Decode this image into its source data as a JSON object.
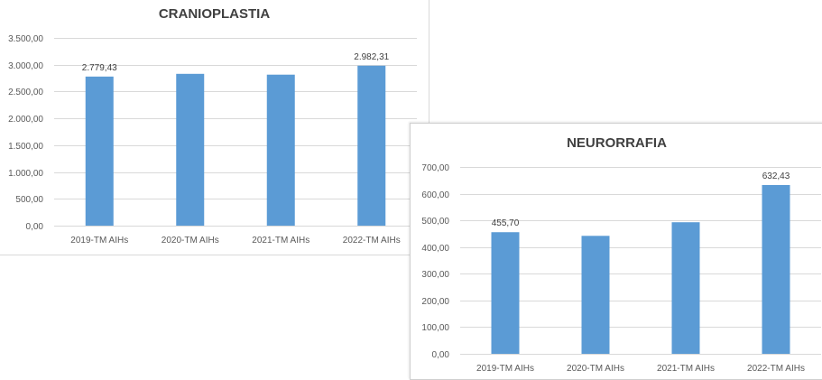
{
  "chart_data": [
    {
      "type": "bar",
      "title": "CRANIOPLASTIA",
      "categories": [
        "2019-TM AIHs",
        "2020-TM AIHs",
        "2021-TM AIHs",
        "2022-TM AIHs"
      ],
      "values": [
        2779.43,
        2830,
        2815,
        2982.31
      ],
      "data_labels": [
        "2.779,43",
        "",
        "",
        "2.982,31"
      ],
      "yticks": [
        "0,00",
        "500,00",
        "1.000,00",
        "1.500,00",
        "2.000,00",
        "2.500,00",
        "3.000,00",
        "3.500,00"
      ],
      "ylim": [
        0,
        3500
      ],
      "grid": true,
      "bar_color": "#5b9bd5"
    },
    {
      "type": "bar",
      "title": "NEURORRAFIA",
      "categories": [
        "2019-TM AIHs",
        "2020-TM AIHs",
        "2021-TM AIHs",
        "2022-TM AIHs"
      ],
      "values": [
        455.7,
        442,
        493,
        632.43
      ],
      "data_labels": [
        "455,70",
        "",
        "",
        "632,43"
      ],
      "yticks": [
        "0,00",
        "100,00",
        "200,00",
        "300,00",
        "400,00",
        "500,00",
        "600,00",
        "700,00"
      ],
      "ylim": [
        0,
        700
      ],
      "grid": true,
      "bar_color": "#5b9bd5"
    }
  ]
}
